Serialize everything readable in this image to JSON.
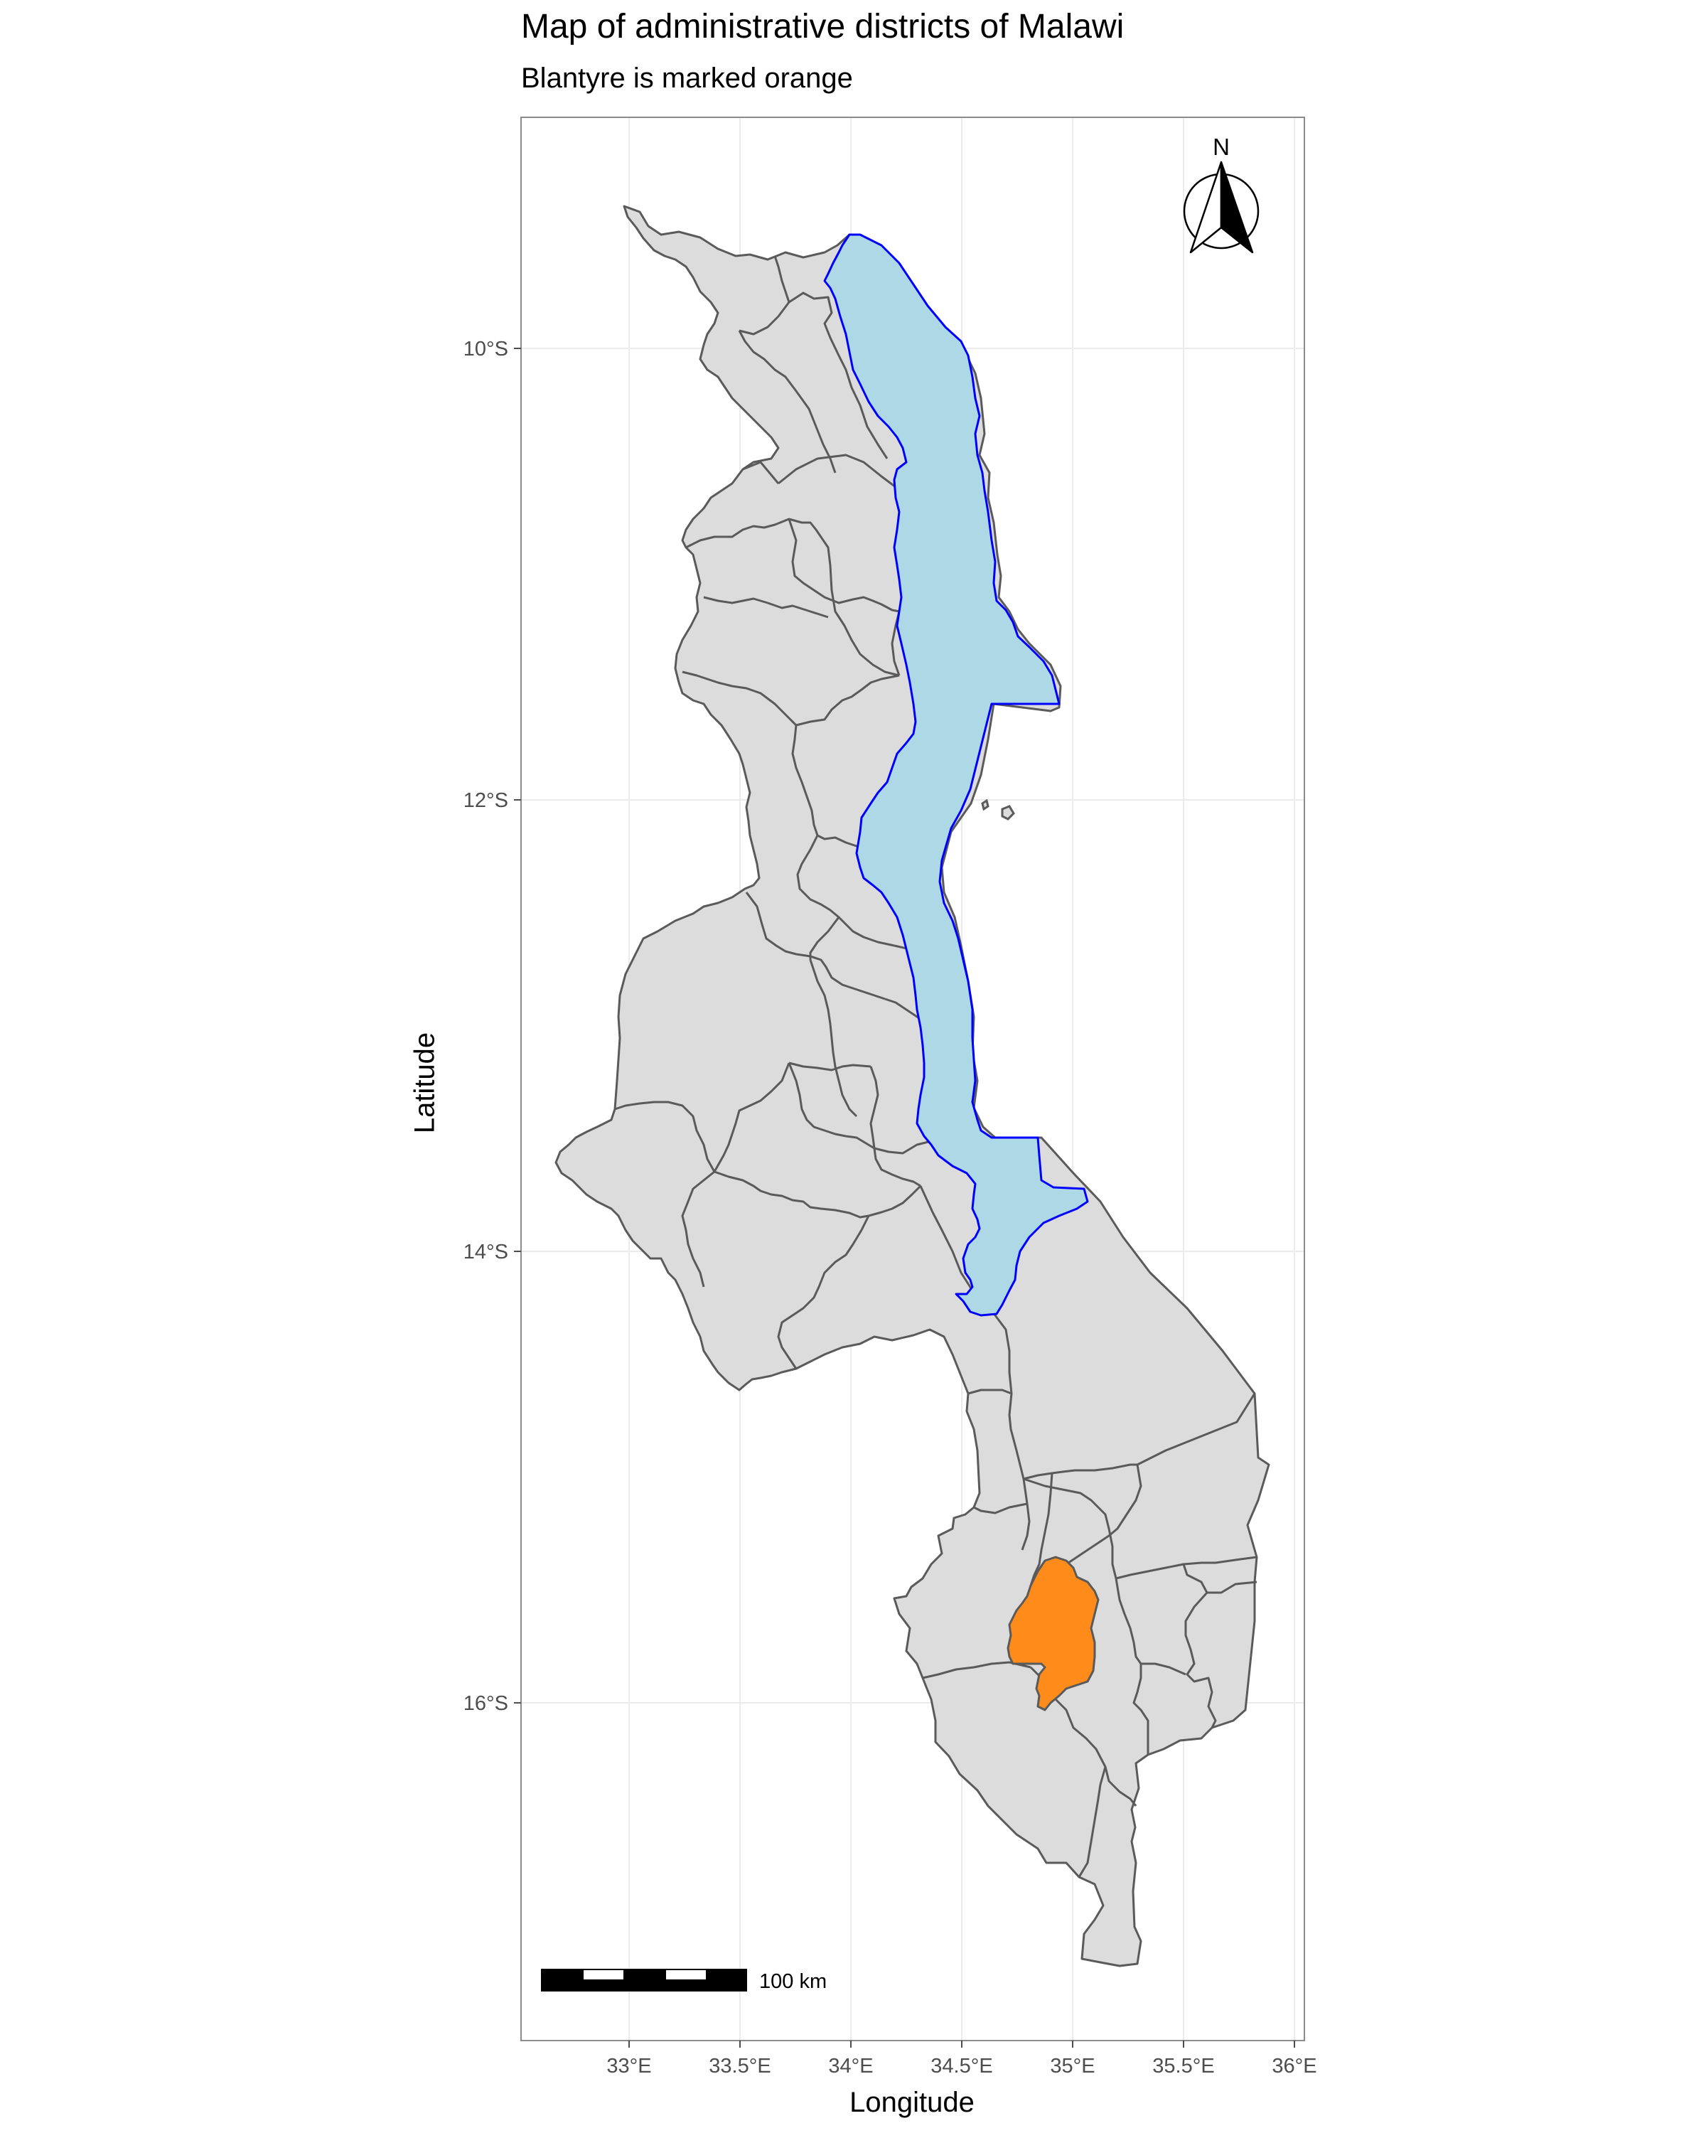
{
  "map": {
    "title": "Map of administrative districts of Malawi",
    "subtitle": "Blantyre is marked orange",
    "x_axis_label": "Longitude",
    "y_axis_label": "Latitude",
    "x_ticks": [
      "33°E",
      "33.5°E",
      "34°E",
      "34.5°E",
      "35°E",
      "35.5°E",
      "36°E"
    ],
    "y_ticks": [
      "10°S",
      "12°S",
      "14°S",
      "16°S"
    ],
    "north_arrow_label": "N",
    "scale_bar_label": "100 km",
    "highlighted_district": "Blantyre",
    "colors": {
      "district_fill": "#dcdcdc",
      "district_border": "#5a5a5a",
      "lake_fill": "#add8e6",
      "lake_border": "#0000ff",
      "highlight_fill": "#ff8c1a",
      "panel_border": "#8c8c8c",
      "grid": "#ebebeb"
    }
  }
}
